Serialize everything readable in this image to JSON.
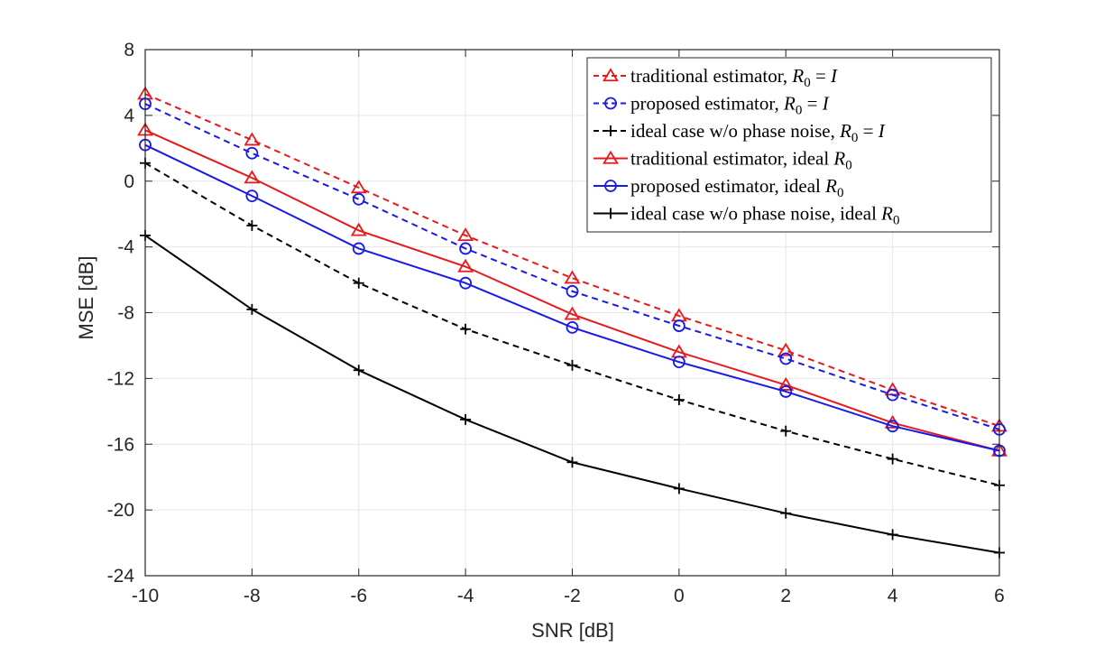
{
  "chart_data": {
    "type": "line",
    "title": "",
    "xlabel": "SNR [dB]",
    "ylabel": "MSE [dB]",
    "x": [
      -10,
      -8,
      -6,
      -4,
      -2,
      0,
      2,
      4,
      6
    ],
    "xlim": [
      -10,
      6
    ],
    "ylim": [
      -24,
      8
    ],
    "xticks": [
      "-10",
      "-8",
      "-6",
      "-4",
      "-2",
      "0",
      "2",
      "4",
      "6"
    ],
    "yticks": [
      "8",
      "4",
      "0",
      "-4",
      "-8",
      "-12",
      "-16",
      "-20",
      "-24"
    ],
    "grid": true,
    "legend_position": "top-right",
    "series": [
      {
        "name": "traditional estimator, R0 = I",
        "label_text": "traditional estimator, ",
        "label_math": "R",
        "label_sub": "0",
        "label_suffix": " = ",
        "label_suffix_math": "I",
        "color": "#e8191b",
        "dash": "dashed",
        "marker": "triangle",
        "values": [
          5.3,
          2.5,
          -0.4,
          -3.3,
          -5.9,
          -8.2,
          -10.3,
          -12.7,
          -14.9
        ]
      },
      {
        "name": "proposed estimator, R0 = I",
        "label_text": "proposed estimator, ",
        "label_math": "R",
        "label_sub": "0",
        "label_suffix": " = ",
        "label_suffix_math": "I",
        "color": "#1a1ae6",
        "dash": "dashed",
        "marker": "circle",
        "values": [
          4.7,
          1.7,
          -1.1,
          -4.1,
          -6.7,
          -8.8,
          -10.8,
          -13.0,
          -15.1
        ]
      },
      {
        "name": "ideal case w/o phase noise, R0 = I",
        "label_text": "ideal case w/o phase noise, ",
        "label_math": "R",
        "label_sub": "0",
        "label_suffix": " = ",
        "label_suffix_math": "I",
        "color": "#000000",
        "dash": "dashed",
        "marker": "plus",
        "values": [
          1.1,
          -2.7,
          -6.2,
          -9.0,
          -11.2,
          -13.3,
          -15.2,
          -16.9,
          -18.5
        ]
      },
      {
        "name": "traditional estimator, ideal R0",
        "label_text": "traditional estimator, ideal ",
        "label_math": "R",
        "label_sub": "0",
        "label_suffix": "",
        "label_suffix_math": "",
        "color": "#e8191b",
        "dash": "solid",
        "marker": "triangle",
        "values": [
          3.1,
          0.2,
          -3.0,
          -5.2,
          -8.1,
          -10.4,
          -12.4,
          -14.7,
          -16.4
        ]
      },
      {
        "name": "proposed estimator, ideal R0",
        "label_text": "proposed estimator, ideal ",
        "label_math": "R",
        "label_sub": "0",
        "label_suffix": "",
        "label_suffix_math": "",
        "color": "#1a1ae6",
        "dash": "solid",
        "marker": "circle",
        "values": [
          2.2,
          -0.9,
          -4.1,
          -6.2,
          -8.9,
          -11.0,
          -12.8,
          -14.9,
          -16.4
        ]
      },
      {
        "name": "ideal case w/o phase noise, ideal R0",
        "label_text": "ideal case w/o phase noise, ideal ",
        "label_math": "R",
        "label_sub": "0",
        "label_suffix": "",
        "label_suffix_math": "",
        "color": "#000000",
        "dash": "solid",
        "marker": "plus",
        "values": [
          -3.3,
          -7.8,
          -11.5,
          -14.5,
          -17.1,
          -18.7,
          -20.2,
          -21.5,
          -22.6
        ]
      }
    ]
  }
}
